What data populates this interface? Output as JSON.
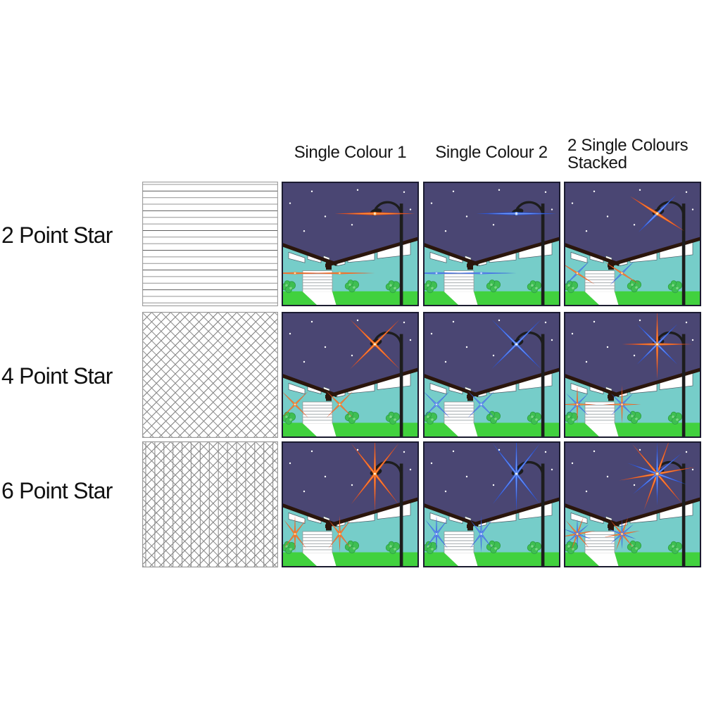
{
  "columns": [
    {
      "label": "Single Colour 1"
    },
    {
      "label": "Single Colour 2"
    },
    {
      "label": "2 Single Colours Stacked",
      "label_lines": [
        "2 Single Colours",
        "Stacked"
      ]
    }
  ],
  "rows": [
    {
      "label": "2 Point Star",
      "pattern": "horizontal-lines"
    },
    {
      "label": "4 Point Star",
      "pattern": "diagonal-crosshatch"
    },
    {
      "label": "6 Point Star",
      "pattern": "diagonal-crosshatch-vertical"
    }
  ],
  "colors": {
    "flare_colour_1": "#e8501c",
    "flare_colour_1_bright": "#ff9a3c",
    "flare_colour_2": "#2b57dd",
    "flare_colour_2_bright": "#7aa2f4",
    "sky": "#4a4673",
    "house": "#76cdc9",
    "roof": "#2b160c",
    "grass": "#41d13e",
    "tree": "#3fbf52",
    "tree_dark": "#2e9e44",
    "tree_light": "#7cd886",
    "pole": "#1d1d1d",
    "window": "#ffffff",
    "star_dot": "#ffffff",
    "pattern_line": "#787878",
    "cell_border": "#1b1b30"
  },
  "cells": [
    {
      "row": 0,
      "col": 0,
      "effect": "2-point horizontal",
      "flares": [
        {
          "colour": "flare_colour_1",
          "rotations": [
            0
          ]
        }
      ]
    },
    {
      "row": 0,
      "col": 1,
      "effect": "2-point horizontal",
      "flares": [
        {
          "colour": "flare_colour_2",
          "rotations": [
            0
          ]
        }
      ]
    },
    {
      "row": 0,
      "col": 2,
      "effect": "two 2-point stacked crossed",
      "flares": [
        {
          "colour": "flare_colour_1",
          "rotations": [
            33
          ]
        },
        {
          "colour": "flare_colour_2",
          "rotations": [
            -45
          ]
        }
      ]
    },
    {
      "row": 1,
      "col": 0,
      "effect": "4-point X",
      "flares": [
        {
          "colour": "flare_colour_1",
          "rotations": [
            45,
            -45
          ]
        }
      ]
    },
    {
      "row": 1,
      "col": 1,
      "effect": "4-point X",
      "flares": [
        {
          "colour": "flare_colour_2",
          "rotations": [
            45,
            -45
          ]
        }
      ]
    },
    {
      "row": 1,
      "col": 2,
      "effect": "two 4-point stacked = 8-point",
      "flares": [
        {
          "colour": "flare_colour_1",
          "rotations": [
            0,
            90
          ]
        },
        {
          "colour": "flare_colour_2",
          "rotations": [
            45,
            -45
          ]
        }
      ]
    },
    {
      "row": 2,
      "col": 0,
      "effect": "6-point",
      "flares": [
        {
          "colour": "flare_colour_1",
          "rotations": [
            90,
            52,
            -52
          ]
        }
      ]
    },
    {
      "row": 2,
      "col": 1,
      "effect": "6-point",
      "flares": [
        {
          "colour": "flare_colour_2",
          "rotations": [
            90,
            52,
            -52
          ]
        }
      ]
    },
    {
      "row": 2,
      "col": 2,
      "effect": "two 6-point stacked = 12-point",
      "flares": [
        {
          "colour": "flare_colour_1",
          "rotations": [
            -10,
            50,
            -70
          ]
        },
        {
          "colour": "flare_colour_2",
          "rotations": [
            90,
            -40,
            20
          ]
        }
      ]
    }
  ]
}
